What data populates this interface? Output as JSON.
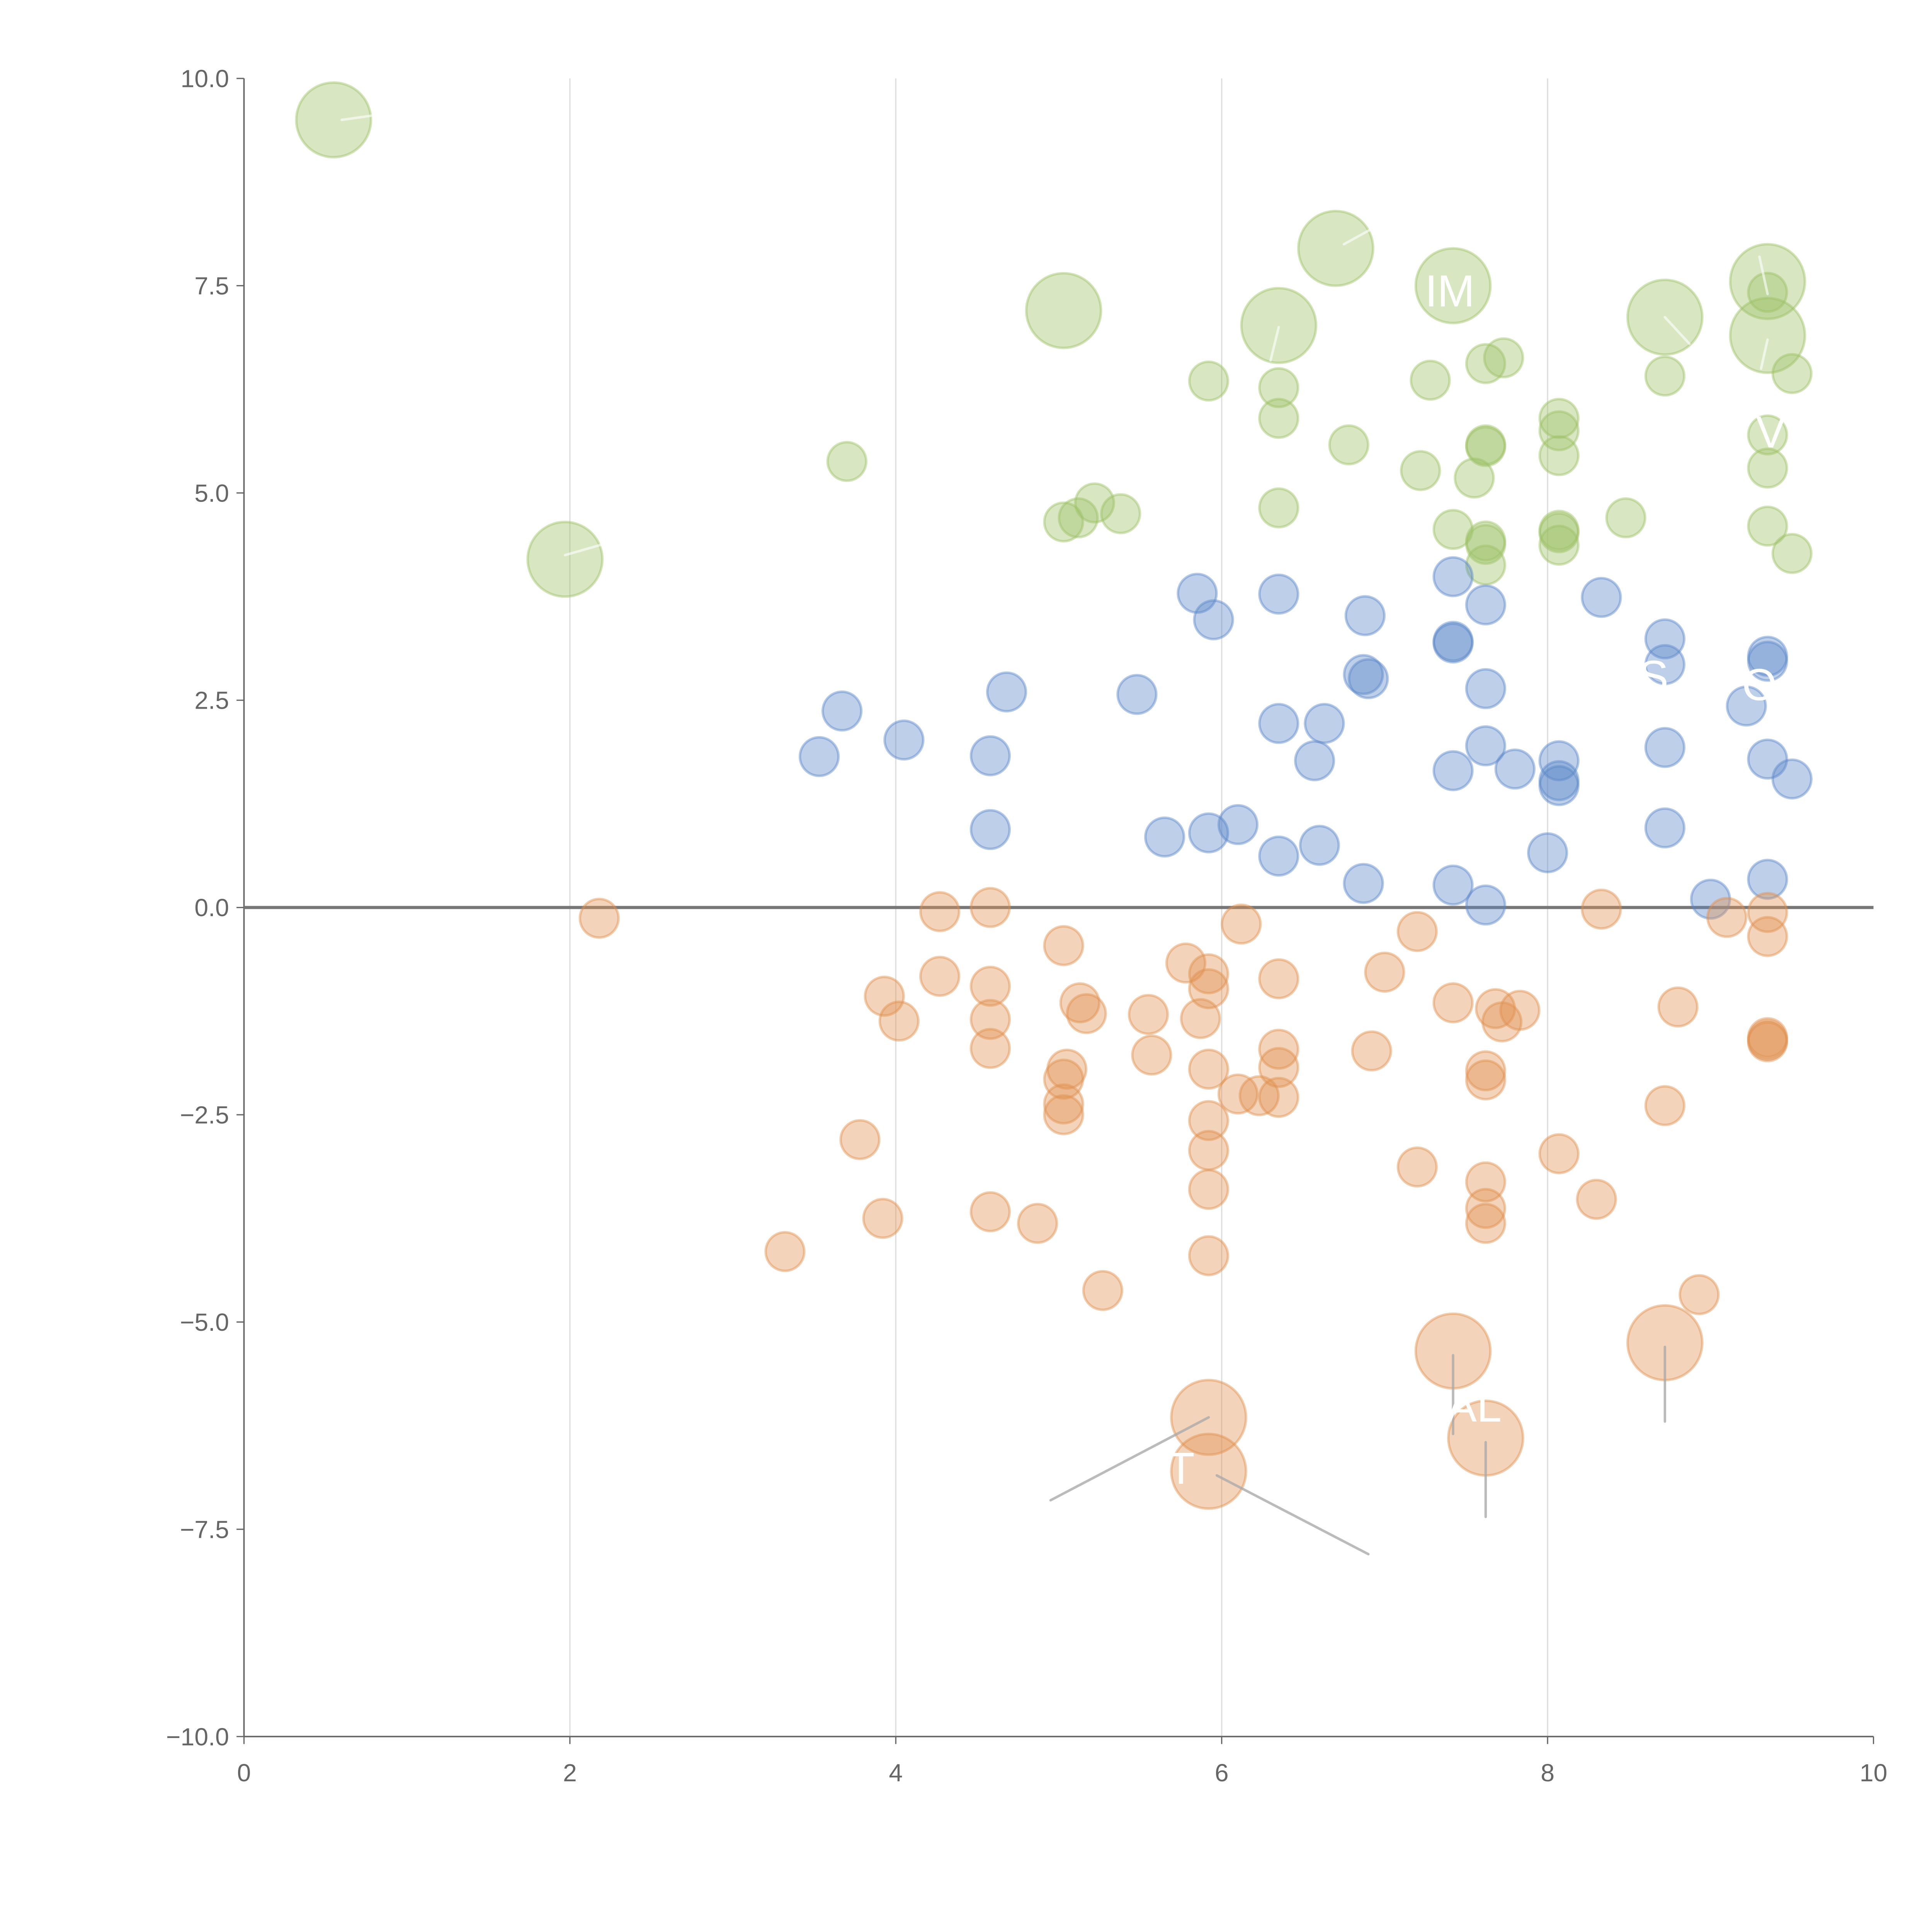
{
  "chart_data": {
    "type": "scatter",
    "title": "",
    "xlabel": "",
    "ylabel": "",
    "xlim": [
      0,
      10
    ],
    "ylim": [
      -10,
      10
    ],
    "xticks": [
      "0",
      "2",
      "4",
      "6",
      "8",
      "10"
    ],
    "yticks": [
      "−10.0",
      "−7.5",
      "−5.0",
      "−2.5",
      "0.0",
      "2.5",
      "5.0",
      "7.5",
      "10.0"
    ],
    "xtick_values": [
      0,
      2,
      4,
      6,
      8,
      10
    ],
    "ytick_values": [
      -10,
      -7.5,
      -5,
      -2.5,
      0,
      2.5,
      5,
      7.5,
      10
    ],
    "grid": "vertical",
    "reference_line_y": 0,
    "colors": {
      "green": "#9dc067",
      "blue": "#5b87c8",
      "orange": "#e0904f",
      "grid": "#dddddd",
      "axis": "#666666",
      "zero": "#777777",
      "leader": "#aaaaaa"
    },
    "series": [
      {
        "name": "green",
        "color": "green",
        "points": [
          [
            0.55,
            9.5,
            4
          ],
          [
            1.97,
            4.2,
            4
          ],
          [
            5.03,
            7.2,
            4
          ],
          [
            6.35,
            7.02,
            4
          ],
          [
            6.7,
            7.95,
            4
          ],
          [
            7.42,
            7.5,
            4
          ],
          [
            8.72,
            7.12,
            4
          ],
          [
            9.35,
            7.55,
            4
          ],
          [
            9.35,
            6.9,
            4
          ],
          [
            3.7,
            5.38,
            1
          ],
          [
            5.03,
            4.65,
            1
          ],
          [
            5.12,
            4.7,
            1
          ],
          [
            5.22,
            4.88,
            1
          ],
          [
            5.38,
            4.75,
            1
          ],
          [
            5.92,
            6.35,
            1
          ],
          [
            6.35,
            6.27,
            1
          ],
          [
            6.35,
            5.9,
            1
          ],
          [
            6.35,
            4.82,
            1
          ],
          [
            6.78,
            5.58,
            1
          ],
          [
            7.22,
            5.27,
            1
          ],
          [
            7.28,
            6.36,
            1
          ],
          [
            7.42,
            4.56,
            1
          ],
          [
            7.55,
            5.18,
            1
          ],
          [
            7.62,
            6.56,
            1
          ],
          [
            7.62,
            5.56,
            1
          ],
          [
            7.62,
            5.58,
            1
          ],
          [
            7.62,
            4.42,
            1
          ],
          [
            7.62,
            4.38,
            1
          ],
          [
            7.62,
            4.13,
            1
          ],
          [
            7.73,
            6.63,
            1
          ],
          [
            8.07,
            5.9,
            1
          ],
          [
            8.07,
            5.75,
            1
          ],
          [
            8.07,
            5.45,
            1
          ],
          [
            8.07,
            4.52,
            1
          ],
          [
            8.07,
            4.55,
            1
          ],
          [
            8.07,
            4.37,
            1
          ],
          [
            8.48,
            4.7,
            1
          ],
          [
            8.72,
            6.41,
            1
          ],
          [
            9.35,
            7.42,
            1
          ],
          [
            9.35,
            5.7,
            1
          ],
          [
            9.35,
            5.3,
            1
          ],
          [
            9.35,
            4.6,
            1
          ],
          [
            9.5,
            6.44,
            1
          ],
          [
            9.5,
            4.27,
            1
          ]
        ]
      },
      {
        "name": "blue",
        "color": "blue",
        "points": [
          [
            3.53,
            1.82,
            1
          ],
          [
            3.67,
            2.37,
            1
          ],
          [
            4.05,
            2.02,
            1
          ],
          [
            4.58,
            1.83,
            1
          ],
          [
            4.58,
            0.94,
            1
          ],
          [
            4.68,
            2.6,
            1
          ],
          [
            5.48,
            2.57,
            1
          ],
          [
            5.65,
            0.85,
            1
          ],
          [
            5.85,
            3.79,
            1
          ],
          [
            5.92,
            0.9,
            1
          ],
          [
            5.95,
            3.47,
            1
          ],
          [
            6.1,
            1.0,
            1
          ],
          [
            6.35,
            3.78,
            1
          ],
          [
            6.35,
            2.22,
            1
          ],
          [
            6.35,
            0.62,
            1
          ],
          [
            6.57,
            1.77,
            1
          ],
          [
            6.6,
            0.75,
            1
          ],
          [
            6.63,
            2.22,
            1
          ],
          [
            6.87,
            2.81,
            1
          ],
          [
            6.88,
            3.52,
            1
          ],
          [
            6.9,
            2.76,
            1
          ],
          [
            6.87,
            0.29,
            1
          ],
          [
            7.42,
            3.99,
            1
          ],
          [
            7.42,
            3.21,
            1
          ],
          [
            7.42,
            3.19,
            1
          ],
          [
            7.42,
            1.65,
            1
          ],
          [
            7.42,
            0.27,
            1
          ],
          [
            7.62,
            3.65,
            1
          ],
          [
            7.62,
            2.64,
            1
          ],
          [
            7.62,
            1.95,
            1
          ],
          [
            7.62,
            0.03,
            1
          ],
          [
            7.8,
            1.67,
            1
          ],
          [
            8.0,
            0.66,
            1
          ],
          [
            8.07,
            1.77,
            1
          ],
          [
            8.07,
            1.53,
            1
          ],
          [
            8.07,
            1.47,
            1
          ],
          [
            8.33,
            3.74,
            1
          ],
          [
            8.72,
            3.24,
            1
          ],
          [
            8.72,
            2.93,
            1
          ],
          [
            8.72,
            1.93,
            1
          ],
          [
            8.72,
            0.96,
            1
          ],
          [
            9.0,
            0.1,
            1
          ],
          [
            9.22,
            2.43,
            1
          ],
          [
            9.35,
            3.03,
            1
          ],
          [
            9.35,
            2.97,
            1
          ],
          [
            9.35,
            1.79,
            1
          ],
          [
            9.35,
            0.34,
            1
          ],
          [
            9.5,
            1.55,
            1
          ]
        ]
      },
      {
        "name": "orange",
        "color": "orange",
        "points": [
          [
            5.92,
            -6.15,
            4
          ],
          [
            5.92,
            -6.8,
            4
          ],
          [
            7.42,
            -5.35,
            4
          ],
          [
            7.62,
            -6.4,
            4
          ],
          [
            8.72,
            -5.25,
            4
          ],
          [
            2.18,
            -0.13,
            1
          ],
          [
            3.32,
            -4.15,
            1
          ],
          [
            3.78,
            -2.8,
            1
          ],
          [
            3.92,
            -3.75,
            1
          ],
          [
            3.93,
            -1.07,
            1
          ],
          [
            4.02,
            -1.37,
            1
          ],
          [
            4.27,
            -0.05,
            1
          ],
          [
            4.27,
            -0.83,
            1
          ],
          [
            4.58,
            0,
            1
          ],
          [
            4.58,
            -0.95,
            1
          ],
          [
            4.58,
            -1.35,
            1
          ],
          [
            4.58,
            -1.7,
            1
          ],
          [
            4.58,
            -3.67,
            1
          ],
          [
            4.87,
            -3.81,
            1
          ],
          [
            5.03,
            -0.46,
            1
          ],
          [
            5.03,
            -2.07,
            1
          ],
          [
            5.03,
            -2.37,
            1
          ],
          [
            5.03,
            -2.5,
            1
          ],
          [
            5.05,
            -1.95,
            1
          ],
          [
            5.13,
            -1.15,
            1
          ],
          [
            5.17,
            -1.28,
            1
          ],
          [
            5.27,
            -4.62,
            1
          ],
          [
            5.55,
            -1.29,
            1
          ],
          [
            5.57,
            -1.78,
            1
          ],
          [
            5.78,
            -0.67,
            1
          ],
          [
            5.87,
            -1.34,
            1
          ],
          [
            5.92,
            -0.8,
            1
          ],
          [
            5.92,
            -0.98,
            1
          ],
          [
            5.92,
            -1.95,
            1
          ],
          [
            5.92,
            -2.57,
            1
          ],
          [
            5.92,
            -2.93,
            1
          ],
          [
            5.92,
            -3.4,
            1
          ],
          [
            5.92,
            -4.2,
            1
          ],
          [
            6.12,
            -0.2,
            1
          ],
          [
            6.1,
            -2.25,
            1
          ],
          [
            6.23,
            -2.27,
            1
          ],
          [
            6.35,
            -0.86,
            1
          ],
          [
            6.35,
            -1.71,
            1
          ],
          [
            6.35,
            -1.93,
            1
          ],
          [
            6.35,
            -2.29,
            1
          ],
          [
            7.0,
            -0.78,
            1
          ],
          [
            6.92,
            -1.73,
            1
          ],
          [
            7.2,
            -0.29,
            1
          ],
          [
            7.2,
            -3.13,
            1
          ],
          [
            7.42,
            -1.15,
            1
          ],
          [
            7.62,
            -1.97,
            1
          ],
          [
            7.62,
            -2.08,
            1
          ],
          [
            7.62,
            -3.31,
            1
          ],
          [
            7.62,
            -3.63,
            1
          ],
          [
            7.62,
            -3.81,
            1
          ],
          [
            7.68,
            -1.22,
            1
          ],
          [
            7.72,
            -1.38,
            1
          ],
          [
            7.83,
            -1.24,
            1
          ],
          [
            8.07,
            -2.97,
            1
          ],
          [
            8.3,
            -3.52,
            1
          ],
          [
            8.33,
            -0.02,
            1
          ],
          [
            8.72,
            -2.39,
            1
          ],
          [
            8.8,
            -1.2,
            1
          ],
          [
            8.93,
            -4.67,
            1
          ],
          [
            9.1,
            -0.12,
            1
          ],
          [
            9.35,
            -0.06,
            1
          ],
          [
            9.35,
            -0.35,
            1
          ],
          [
            9.35,
            -1.57,
            1
          ],
          [
            9.35,
            -1.6,
            1
          ],
          [
            9.35,
            -1.62,
            1
          ]
        ]
      }
    ],
    "leader_lines": [
      [
        0.6,
        9.5,
        0.78,
        9.55,
        "light"
      ],
      [
        1.97,
        4.25,
        2.2,
        4.38,
        "light"
      ],
      [
        6.75,
        8.0,
        6.98,
        8.25,
        "light"
      ],
      [
        6.35,
        7.0,
        6.3,
        6.6,
        "light"
      ],
      [
        8.72,
        7.12,
        8.87,
        6.8,
        "light"
      ],
      [
        9.35,
        7.4,
        9.3,
        7.85,
        "light"
      ],
      [
        9.35,
        6.85,
        9.31,
        6.5,
        "light"
      ],
      [
        5.92,
        -6.15,
        4.95,
        -7.15,
        "dark"
      ],
      [
        5.97,
        -6.85,
        6.9,
        -7.8,
        "dark"
      ],
      [
        7.42,
        -5.4,
        7.42,
        -6.35,
        "dark"
      ],
      [
        7.62,
        -6.45,
        7.62,
        -7.35,
        "dark"
      ],
      [
        8.72,
        -5.3,
        8.72,
        -6.2,
        "dark"
      ]
    ],
    "annotations": [
      {
        "text": "IM",
        "x": 7.4,
        "y": 7.25
      },
      {
        "text": "V",
        "x": 9.37,
        "y": 5.55
      },
      {
        "text": "AL",
        "x": 7.55,
        "y": -6.2
      },
      {
        "text": "T",
        "x": 5.75,
        "y": -6.95
      },
      {
        "text": "S",
        "x": 8.65,
        "y": 2.6
      },
      {
        "text": "O",
        "x": 9.3,
        "y": 2.5
      }
    ]
  }
}
